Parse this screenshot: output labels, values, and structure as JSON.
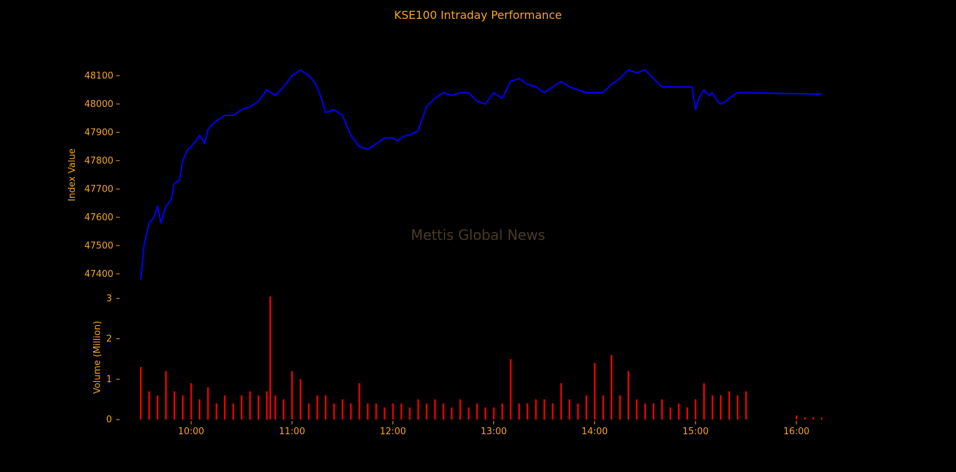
{
  "chart_data": {
    "type": "line",
    "title": "KSE100 Intraday Performance",
    "watermark": "Mettis Global News",
    "colors": {
      "background": "#000000",
      "text": "#f5a623",
      "line": "#0000ff",
      "volume": "#ff0000",
      "watermark": "#4a3a24"
    },
    "x_ticks": [
      "10:00",
      "11:00",
      "12:00",
      "13:00",
      "14:00",
      "15:00",
      "16:00"
    ],
    "xlim": [
      "09:20",
      "16:20"
    ],
    "panels": [
      {
        "name": "index",
        "type": "line",
        "ylabel": "Index Value",
        "ylim": [
          47350,
          48150
        ],
        "y_ticks": [
          47400,
          47500,
          47600,
          47700,
          47800,
          47900,
          48000,
          48100
        ],
        "grid": false,
        "series": [
          {
            "x": [
              "09:30",
              "09:32",
              "09:35",
              "09:38",
              "09:40",
              "09:42",
              "09:45",
              "09:48",
              "09:50",
              "09:53",
              "09:55",
              "09:58",
              "10:00",
              "10:03",
              "10:05",
              "10:08",
              "10:10",
              "10:13",
              "10:15",
              "10:20",
              "10:25",
              "10:30",
              "10:35",
              "10:40",
              "10:45",
              "10:50",
              "10:55",
              "11:00",
              "11:05",
              "11:10",
              "11:13",
              "11:15",
              "11:18",
              "11:20",
              "11:25",
              "11:30",
              "11:35",
              "11:40",
              "11:45",
              "11:50",
              "11:55",
              "12:00",
              "12:03",
              "12:05",
              "12:08",
              "12:10",
              "12:15",
              "12:20",
              "12:25",
              "12:30",
              "12:35",
              "12:40",
              "12:45",
              "12:50",
              "12:55",
              "13:00",
              "13:05",
              "13:10",
              "13:15",
              "13:20",
              "13:25",
              "13:30",
              "13:35",
              "13:40",
              "13:45",
              "13:50",
              "13:55",
              "14:00",
              "14:05",
              "14:10",
              "14:15",
              "14:20",
              "14:25",
              "14:30",
              "14:35",
              "14:40",
              "14:45",
              "14:50",
              "14:55",
              "14:58",
              "15:00",
              "15:02",
              "15:05",
              "15:08",
              "15:10",
              "15:13",
              "15:15",
              "15:18",
              "15:20",
              "15:25",
              "15:30",
              "16:15"
            ],
            "values": [
              47380,
              47500,
              47580,
              47600,
              47640,
              47580,
              47640,
              47660,
              47720,
              47730,
              47800,
              47840,
              47850,
              47870,
              47890,
              47860,
              47910,
              47930,
              47940,
              47960,
              47960,
              47980,
              47990,
              48010,
              48050,
              48030,
              48060,
              48100,
              48120,
              48100,
              48080,
              48060,
              48010,
              47970,
              47980,
              47960,
              47890,
              47850,
              47840,
              47860,
              47880,
              47880,
              47870,
              47880,
              47890,
              47890,
              47905,
              47990,
              48020,
              48040,
              48030,
              48040,
              48040,
              48010,
              48000,
              48040,
              48020,
              48080,
              48090,
              48070,
              48060,
              48040,
              48060,
              48080,
              48060,
              48050,
              48040,
              48040,
              48040,
              48070,
              48090,
              48120,
              48110,
              48120,
              48090,
              48060,
              48060,
              48060,
              48060,
              48060,
              47980,
              48020,
              48050,
              48030,
              48040,
              48010,
              48000,
              48010,
              48020,
              48040,
              48040,
              48035
            ]
          }
        ]
      },
      {
        "name": "volume",
        "type": "bar",
        "ylabel": "Volume (Million)",
        "ylim": [
          0,
          3.1
        ],
        "y_ticks": [
          0,
          1,
          2,
          3
        ],
        "grid": false,
        "series": [
          {
            "x": [
              "09:30",
              "09:35",
              "09:40",
              "09:45",
              "09:50",
              "09:55",
              "10:00",
              "10:05",
              "10:10",
              "10:15",
              "10:20",
              "10:25",
              "10:30",
              "10:35",
              "10:40",
              "10:45",
              "10:47",
              "10:50",
              "10:55",
              "11:00",
              "11:05",
              "11:10",
              "11:15",
              "11:20",
              "11:25",
              "11:30",
              "11:35",
              "11:40",
              "11:45",
              "11:50",
              "11:55",
              "12:00",
              "12:05",
              "12:10",
              "12:15",
              "12:20",
              "12:25",
              "12:30",
              "12:35",
              "12:40",
              "12:45",
              "12:50",
              "12:55",
              "13:00",
              "13:05",
              "13:10",
              "13:15",
              "13:20",
              "13:25",
              "13:30",
              "13:35",
              "13:40",
              "13:45",
              "13:50",
              "13:55",
              "14:00",
              "14:05",
              "14:10",
              "14:15",
              "14:20",
              "14:25",
              "14:30",
              "14:35",
              "14:40",
              "14:45",
              "14:50",
              "14:55",
              "15:00",
              "15:05",
              "15:10",
              "15:15",
              "15:20",
              "15:25",
              "15:30",
              "16:00",
              "16:05",
              "16:10",
              "16:15"
            ],
            "values": [
              1.3,
              0.7,
              0.6,
              1.2,
              0.7,
              0.6,
              0.9,
              0.5,
              0.8,
              0.4,
              0.6,
              0.4,
              0.6,
              0.7,
              0.6,
              0.7,
              3.05,
              0.6,
              0.5,
              1.2,
              1.0,
              0.4,
              0.6,
              0.6,
              0.4,
              0.5,
              0.4,
              0.9,
              0.4,
              0.4,
              0.3,
              0.4,
              0.4,
              0.3,
              0.5,
              0.4,
              0.5,
              0.4,
              0.3,
              0.5,
              0.3,
              0.4,
              0.3,
              0.3,
              0.4,
              1.5,
              0.4,
              0.4,
              0.5,
              0.5,
              0.4,
              0.9,
              0.5,
              0.4,
              0.6,
              1.4,
              0.6,
              1.6,
              0.6,
              1.2,
              0.5,
              0.4,
              0.4,
              0.5,
              0.3,
              0.4,
              0.3,
              0.5,
              0.9,
              0.6,
              0.6,
              0.7,
              0.6,
              0.7,
              0.1,
              0.05,
              0.06,
              0.05
            ]
          }
        ]
      }
    ]
  }
}
